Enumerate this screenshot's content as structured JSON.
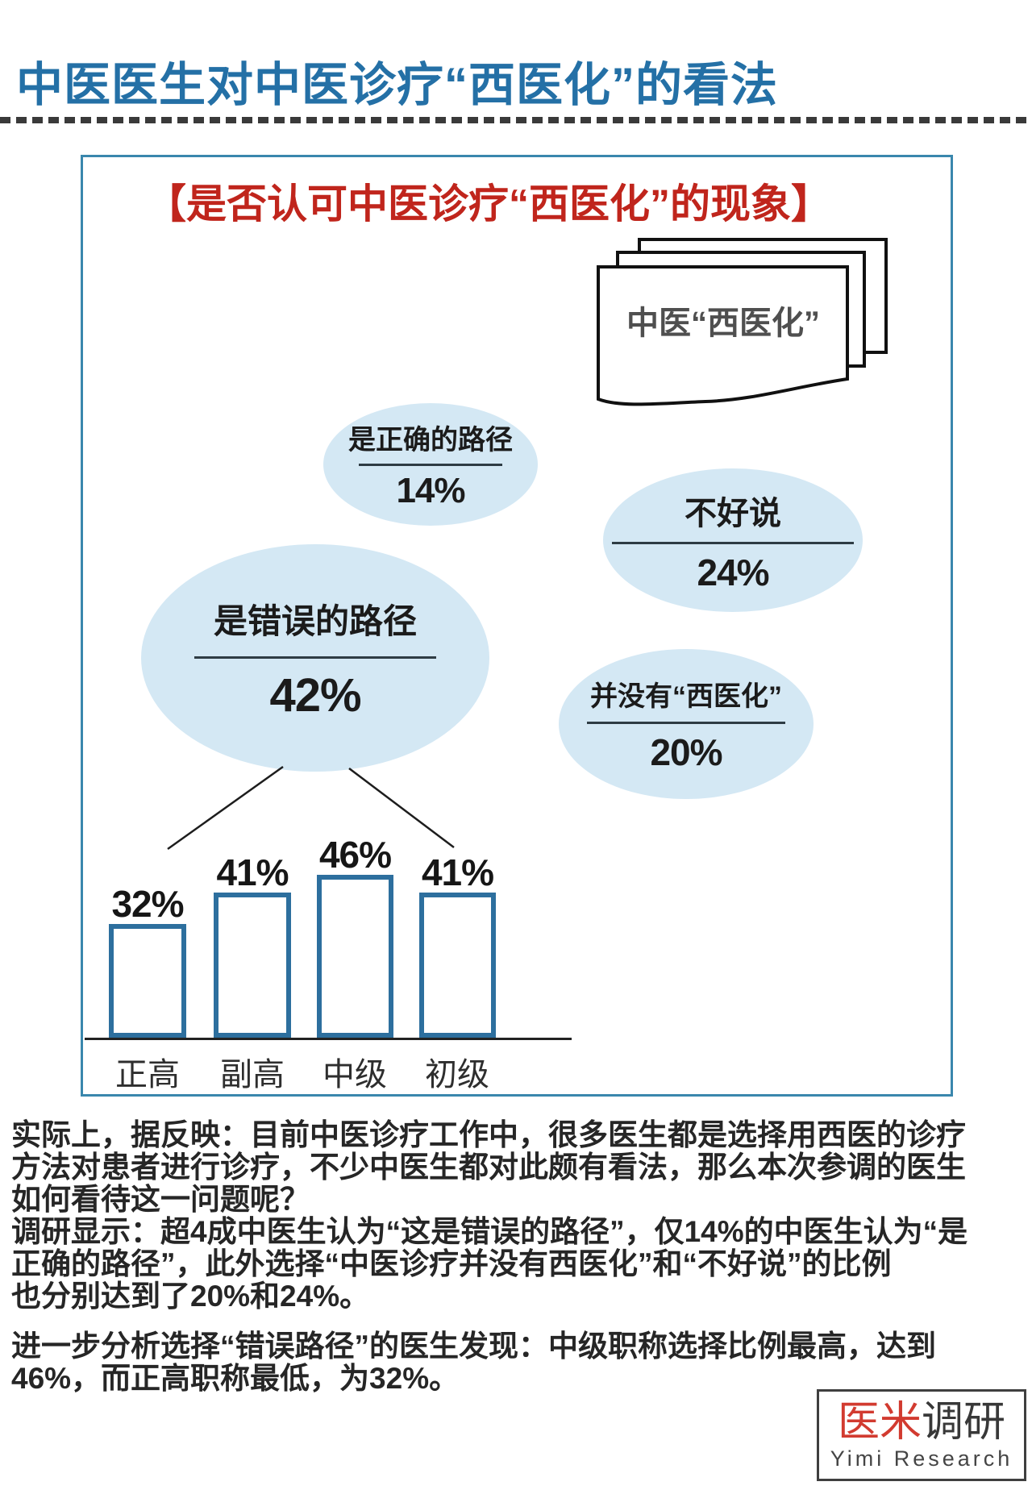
{
  "page_title": "中医医生对中医诊疗“西医化”的看法",
  "chart_box": {
    "heading": "【是否认可中医诊疗“西医化”的现象】",
    "paper_label": "中医“西医化”"
  },
  "chart_data": [
    {
      "type": "bubble",
      "title": "是否认可中医诊疗“西医化”的现象",
      "unit": "%",
      "items": [
        {
          "label": "是正确的路径",
          "value": 14,
          "display": "14%"
        },
        {
          "label": "不好说",
          "value": 24,
          "display": "24%"
        },
        {
          "label": "是错误的路径",
          "value": 42,
          "display": "42%"
        },
        {
          "label": "并没有“西医化”",
          "value": 20,
          "display": "20%"
        }
      ]
    },
    {
      "type": "bar",
      "categories": [
        "正高",
        "副高",
        "中级",
        "初级"
      ],
      "values": [
        32,
        41,
        46,
        41
      ],
      "value_labels": [
        "32%",
        "41%",
        "46%",
        "41%"
      ],
      "ylim": [
        0,
        50
      ],
      "grid": false,
      "legend": false
    }
  ],
  "paragraphs": {
    "p1_lines": [
      "实际上，据反映：目前中医诊疗工作中，很多医生都是选择用西医的诊疗",
      "方法对患者进行诊疗，不少中医生都对此颇有看法，那么本次参调的医生",
      "如何看待这一问题呢？",
      "调研显示：超4成中医生认为“这是错误的路径”，仅14%的中医生认为“是",
      "正确的路径”，此外选择“中医诊疗并没有西医化”和“不好说”的比例",
      "也分别达到了20%和24%。"
    ],
    "p2_lines": [
      "进一步分析选择“错误路径”的医生发现：中级职称选择比例最高，达到",
      "46%，而正高职称最低，为32%。"
    ]
  },
  "logo": {
    "name_red": "医米",
    "name_dark": "调研",
    "subtitle": "Yimi  Research"
  },
  "colors": {
    "title_blue": "#2470a6",
    "box_border": "#3a87ad",
    "heading_red": "#c0251c",
    "bubble_fill": "#d4e8f4",
    "bar_border": "#2d6f9e",
    "logo_red": "#d23b30"
  }
}
